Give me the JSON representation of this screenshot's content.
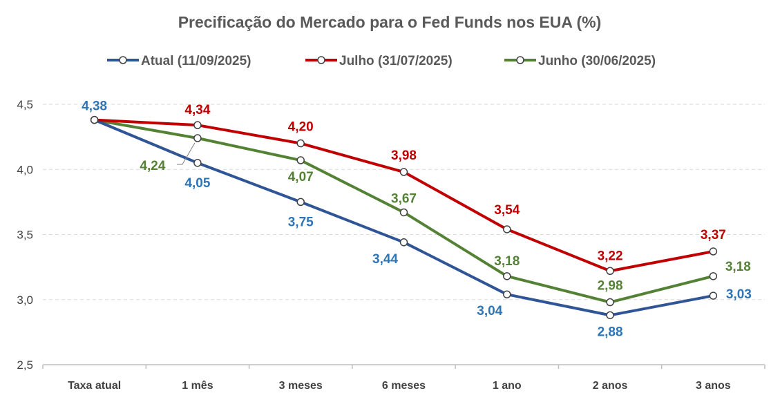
{
  "chart_data": {
    "type": "line",
    "title": "Precificação do Mercado para o Fed Funds nos EUA (%)",
    "xlabel": "",
    "ylabel": "",
    "categories": [
      "Taxa atual",
      "1 mês",
      "3 meses",
      "6 meses",
      "1 ano",
      "2 anos",
      "3 anos"
    ],
    "ylim": [
      2.5,
      4.5
    ],
    "yticks": [
      "2,5",
      "3,0",
      "3,5",
      "4,0",
      "4,5"
    ],
    "grid": true,
    "legend": "top",
    "series": [
      {
        "name": "Atual (11/09/2025)",
        "color": "#2f5597",
        "label_color": "#2e75b6",
        "values": [
          4.38,
          4.05,
          3.75,
          3.44,
          3.04,
          2.88,
          3.03
        ],
        "labels": [
          "4,38",
          "4,05",
          "3,75",
          "3,44",
          "3,04",
          "2,88",
          "3,03"
        ]
      },
      {
        "name": "Julho (31/07/2025)",
        "color": "#c00000",
        "label_color": "#c00000",
        "values": [
          4.38,
          4.34,
          4.2,
          3.98,
          3.54,
          3.22,
          3.37
        ],
        "labels": [
          "",
          "4,34",
          "4,20",
          "3,98",
          "3,54",
          "3,22",
          "3,37"
        ]
      },
      {
        "name": "Junho (30/06/2025)",
        "color": "#548235",
        "label_color": "#548235",
        "values": [
          4.38,
          4.24,
          4.07,
          3.67,
          3.18,
          2.98,
          3.18
        ],
        "labels": [
          "",
          "4,24",
          "4,07",
          "3,67",
          "3,18",
          "2,98",
          "3,18"
        ]
      }
    ]
  }
}
